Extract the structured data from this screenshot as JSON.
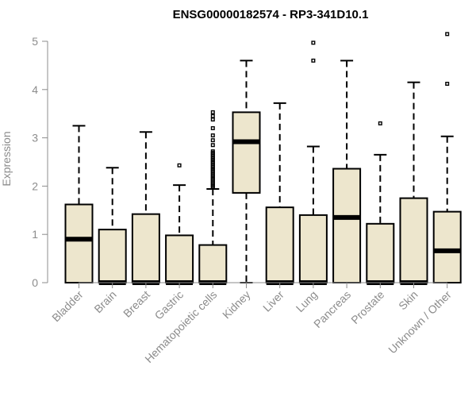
{
  "chart_data": {
    "type": "box",
    "title": "ENSG00000182574 - RP3-341D10.1",
    "ylabel": "Expression",
    "xlabel": "",
    "ylim": [
      0,
      5
    ],
    "yticks": [
      0,
      1,
      2,
      3,
      4,
      5
    ],
    "grid": false,
    "categories": [
      "Bladder",
      "Brain",
      "Breast",
      "Gastric",
      "Hematopoietic cells",
      "Kidney",
      "Liver",
      "Lung",
      "Pancreas",
      "Prostate",
      "Skin",
      "Unknown / Other"
    ],
    "series": [
      {
        "category": "Bladder",
        "min": 0,
        "q1": 0,
        "median": 0.9,
        "q3": 1.62,
        "max": 3.25,
        "outliers": []
      },
      {
        "category": "Brain",
        "min": 0,
        "q1": 0,
        "median": 0,
        "q3": 1.1,
        "max": 2.38,
        "outliers": []
      },
      {
        "category": "Breast",
        "min": 0,
        "q1": 0,
        "median": 0,
        "q3": 1.42,
        "max": 3.12,
        "outliers": []
      },
      {
        "category": "Gastric",
        "min": 0,
        "q1": 0,
        "median": 0,
        "q3": 0.98,
        "max": 2.02,
        "outliers": [
          2.43
        ]
      },
      {
        "category": "Hematopoietic cells",
        "min": 0,
        "q1": 0,
        "median": 0,
        "q3": 0.78,
        "max": 1.94,
        "outliers": [
          1.97,
          2.0,
          2.03,
          2.06,
          2.09,
          2.12,
          2.15,
          2.18,
          2.21,
          2.24,
          2.27,
          2.3,
          2.33,
          2.36,
          2.39,
          2.42,
          2.45,
          2.48,
          2.51,
          2.54,
          2.57,
          2.6,
          2.63,
          2.66,
          2.69,
          2.72,
          2.85,
          2.95,
          3.05,
          3.2,
          3.38,
          3.45,
          3.53
        ]
      },
      {
        "category": "Kidney",
        "min": 0,
        "q1": 1.86,
        "median": 2.92,
        "q3": 3.53,
        "max": 4.6,
        "outliers": []
      },
      {
        "category": "Liver",
        "min": 0,
        "q1": 0,
        "median": 0,
        "q3": 1.56,
        "max": 3.72,
        "outliers": []
      },
      {
        "category": "Lung",
        "min": 0,
        "q1": 0,
        "median": 0,
        "q3": 1.4,
        "max": 2.82,
        "outliers": [
          4.6,
          4.97
        ]
      },
      {
        "category": "Pancreas",
        "min": 0,
        "q1": 0,
        "median": 1.35,
        "q3": 2.36,
        "max": 4.6,
        "outliers": []
      },
      {
        "category": "Prostate",
        "min": 0,
        "q1": 0,
        "median": 0,
        "q3": 1.22,
        "max": 2.65,
        "outliers": [
          3.3
        ]
      },
      {
        "category": "Skin",
        "min": 0,
        "q1": 0,
        "median": 0,
        "q3": 1.75,
        "max": 4.15,
        "outliers": []
      },
      {
        "category": "Unknown / Other",
        "min": 0,
        "q1": 0,
        "median": 0.66,
        "q3": 1.47,
        "max": 3.03,
        "outliers": [
          4.12,
          5.15
        ]
      }
    ]
  }
}
